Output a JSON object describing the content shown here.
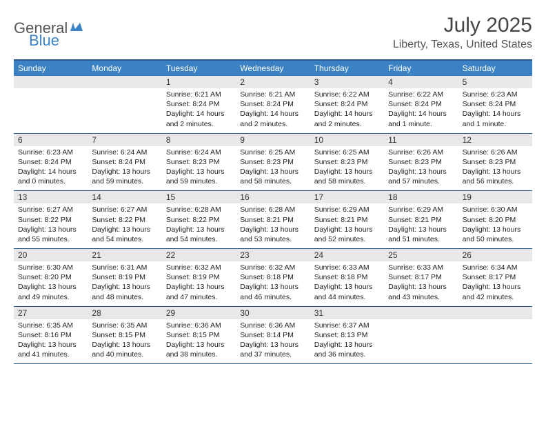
{
  "logo": {
    "word1": "General",
    "word2": "Blue"
  },
  "title": "July 2025",
  "location": "Liberty, Texas, United States",
  "colors": {
    "header_bg": "#3b82c4",
    "header_text": "#ffffff",
    "border": "#2a5a8a",
    "daynum_bg": "#e8e8e8",
    "logo_gray": "#555555",
    "logo_blue": "#3b82c4",
    "body_text": "#222222"
  },
  "dow": [
    "Sunday",
    "Monday",
    "Tuesday",
    "Wednesday",
    "Thursday",
    "Friday",
    "Saturday"
  ],
  "weeks": [
    [
      {
        "n": "",
        "sr": "",
        "ss": "",
        "dl": ""
      },
      {
        "n": "",
        "sr": "",
        "ss": "",
        "dl": ""
      },
      {
        "n": "1",
        "sr": "6:21 AM",
        "ss": "8:24 PM",
        "dl": "14 hours and 2 minutes."
      },
      {
        "n": "2",
        "sr": "6:21 AM",
        "ss": "8:24 PM",
        "dl": "14 hours and 2 minutes."
      },
      {
        "n": "3",
        "sr": "6:22 AM",
        "ss": "8:24 PM",
        "dl": "14 hours and 2 minutes."
      },
      {
        "n": "4",
        "sr": "6:22 AM",
        "ss": "8:24 PM",
        "dl": "14 hours and 1 minute."
      },
      {
        "n": "5",
        "sr": "6:23 AM",
        "ss": "8:24 PM",
        "dl": "14 hours and 1 minute."
      }
    ],
    [
      {
        "n": "6",
        "sr": "6:23 AM",
        "ss": "8:24 PM",
        "dl": "14 hours and 0 minutes."
      },
      {
        "n": "7",
        "sr": "6:24 AM",
        "ss": "8:24 PM",
        "dl": "13 hours and 59 minutes."
      },
      {
        "n": "8",
        "sr": "6:24 AM",
        "ss": "8:23 PM",
        "dl": "13 hours and 59 minutes."
      },
      {
        "n": "9",
        "sr": "6:25 AM",
        "ss": "8:23 PM",
        "dl": "13 hours and 58 minutes."
      },
      {
        "n": "10",
        "sr": "6:25 AM",
        "ss": "8:23 PM",
        "dl": "13 hours and 58 minutes."
      },
      {
        "n": "11",
        "sr": "6:26 AM",
        "ss": "8:23 PM",
        "dl": "13 hours and 57 minutes."
      },
      {
        "n": "12",
        "sr": "6:26 AM",
        "ss": "8:23 PM",
        "dl": "13 hours and 56 minutes."
      }
    ],
    [
      {
        "n": "13",
        "sr": "6:27 AM",
        "ss": "8:22 PM",
        "dl": "13 hours and 55 minutes."
      },
      {
        "n": "14",
        "sr": "6:27 AM",
        "ss": "8:22 PM",
        "dl": "13 hours and 54 minutes."
      },
      {
        "n": "15",
        "sr": "6:28 AM",
        "ss": "8:22 PM",
        "dl": "13 hours and 54 minutes."
      },
      {
        "n": "16",
        "sr": "6:28 AM",
        "ss": "8:21 PM",
        "dl": "13 hours and 53 minutes."
      },
      {
        "n": "17",
        "sr": "6:29 AM",
        "ss": "8:21 PM",
        "dl": "13 hours and 52 minutes."
      },
      {
        "n": "18",
        "sr": "6:29 AM",
        "ss": "8:21 PM",
        "dl": "13 hours and 51 minutes."
      },
      {
        "n": "19",
        "sr": "6:30 AM",
        "ss": "8:20 PM",
        "dl": "13 hours and 50 minutes."
      }
    ],
    [
      {
        "n": "20",
        "sr": "6:30 AM",
        "ss": "8:20 PM",
        "dl": "13 hours and 49 minutes."
      },
      {
        "n": "21",
        "sr": "6:31 AM",
        "ss": "8:19 PM",
        "dl": "13 hours and 48 minutes."
      },
      {
        "n": "22",
        "sr": "6:32 AM",
        "ss": "8:19 PM",
        "dl": "13 hours and 47 minutes."
      },
      {
        "n": "23",
        "sr": "6:32 AM",
        "ss": "8:18 PM",
        "dl": "13 hours and 46 minutes."
      },
      {
        "n": "24",
        "sr": "6:33 AM",
        "ss": "8:18 PM",
        "dl": "13 hours and 44 minutes."
      },
      {
        "n": "25",
        "sr": "6:33 AM",
        "ss": "8:17 PM",
        "dl": "13 hours and 43 minutes."
      },
      {
        "n": "26",
        "sr": "6:34 AM",
        "ss": "8:17 PM",
        "dl": "13 hours and 42 minutes."
      }
    ],
    [
      {
        "n": "27",
        "sr": "6:35 AM",
        "ss": "8:16 PM",
        "dl": "13 hours and 41 minutes."
      },
      {
        "n": "28",
        "sr": "6:35 AM",
        "ss": "8:15 PM",
        "dl": "13 hours and 40 minutes."
      },
      {
        "n": "29",
        "sr": "6:36 AM",
        "ss": "8:15 PM",
        "dl": "13 hours and 38 minutes."
      },
      {
        "n": "30",
        "sr": "6:36 AM",
        "ss": "8:14 PM",
        "dl": "13 hours and 37 minutes."
      },
      {
        "n": "31",
        "sr": "6:37 AM",
        "ss": "8:13 PM",
        "dl": "13 hours and 36 minutes."
      },
      {
        "n": "",
        "sr": "",
        "ss": "",
        "dl": ""
      },
      {
        "n": "",
        "sr": "",
        "ss": "",
        "dl": ""
      }
    ]
  ],
  "labels": {
    "sunrise": "Sunrise:",
    "sunset": "Sunset:",
    "daylight": "Daylight:"
  }
}
